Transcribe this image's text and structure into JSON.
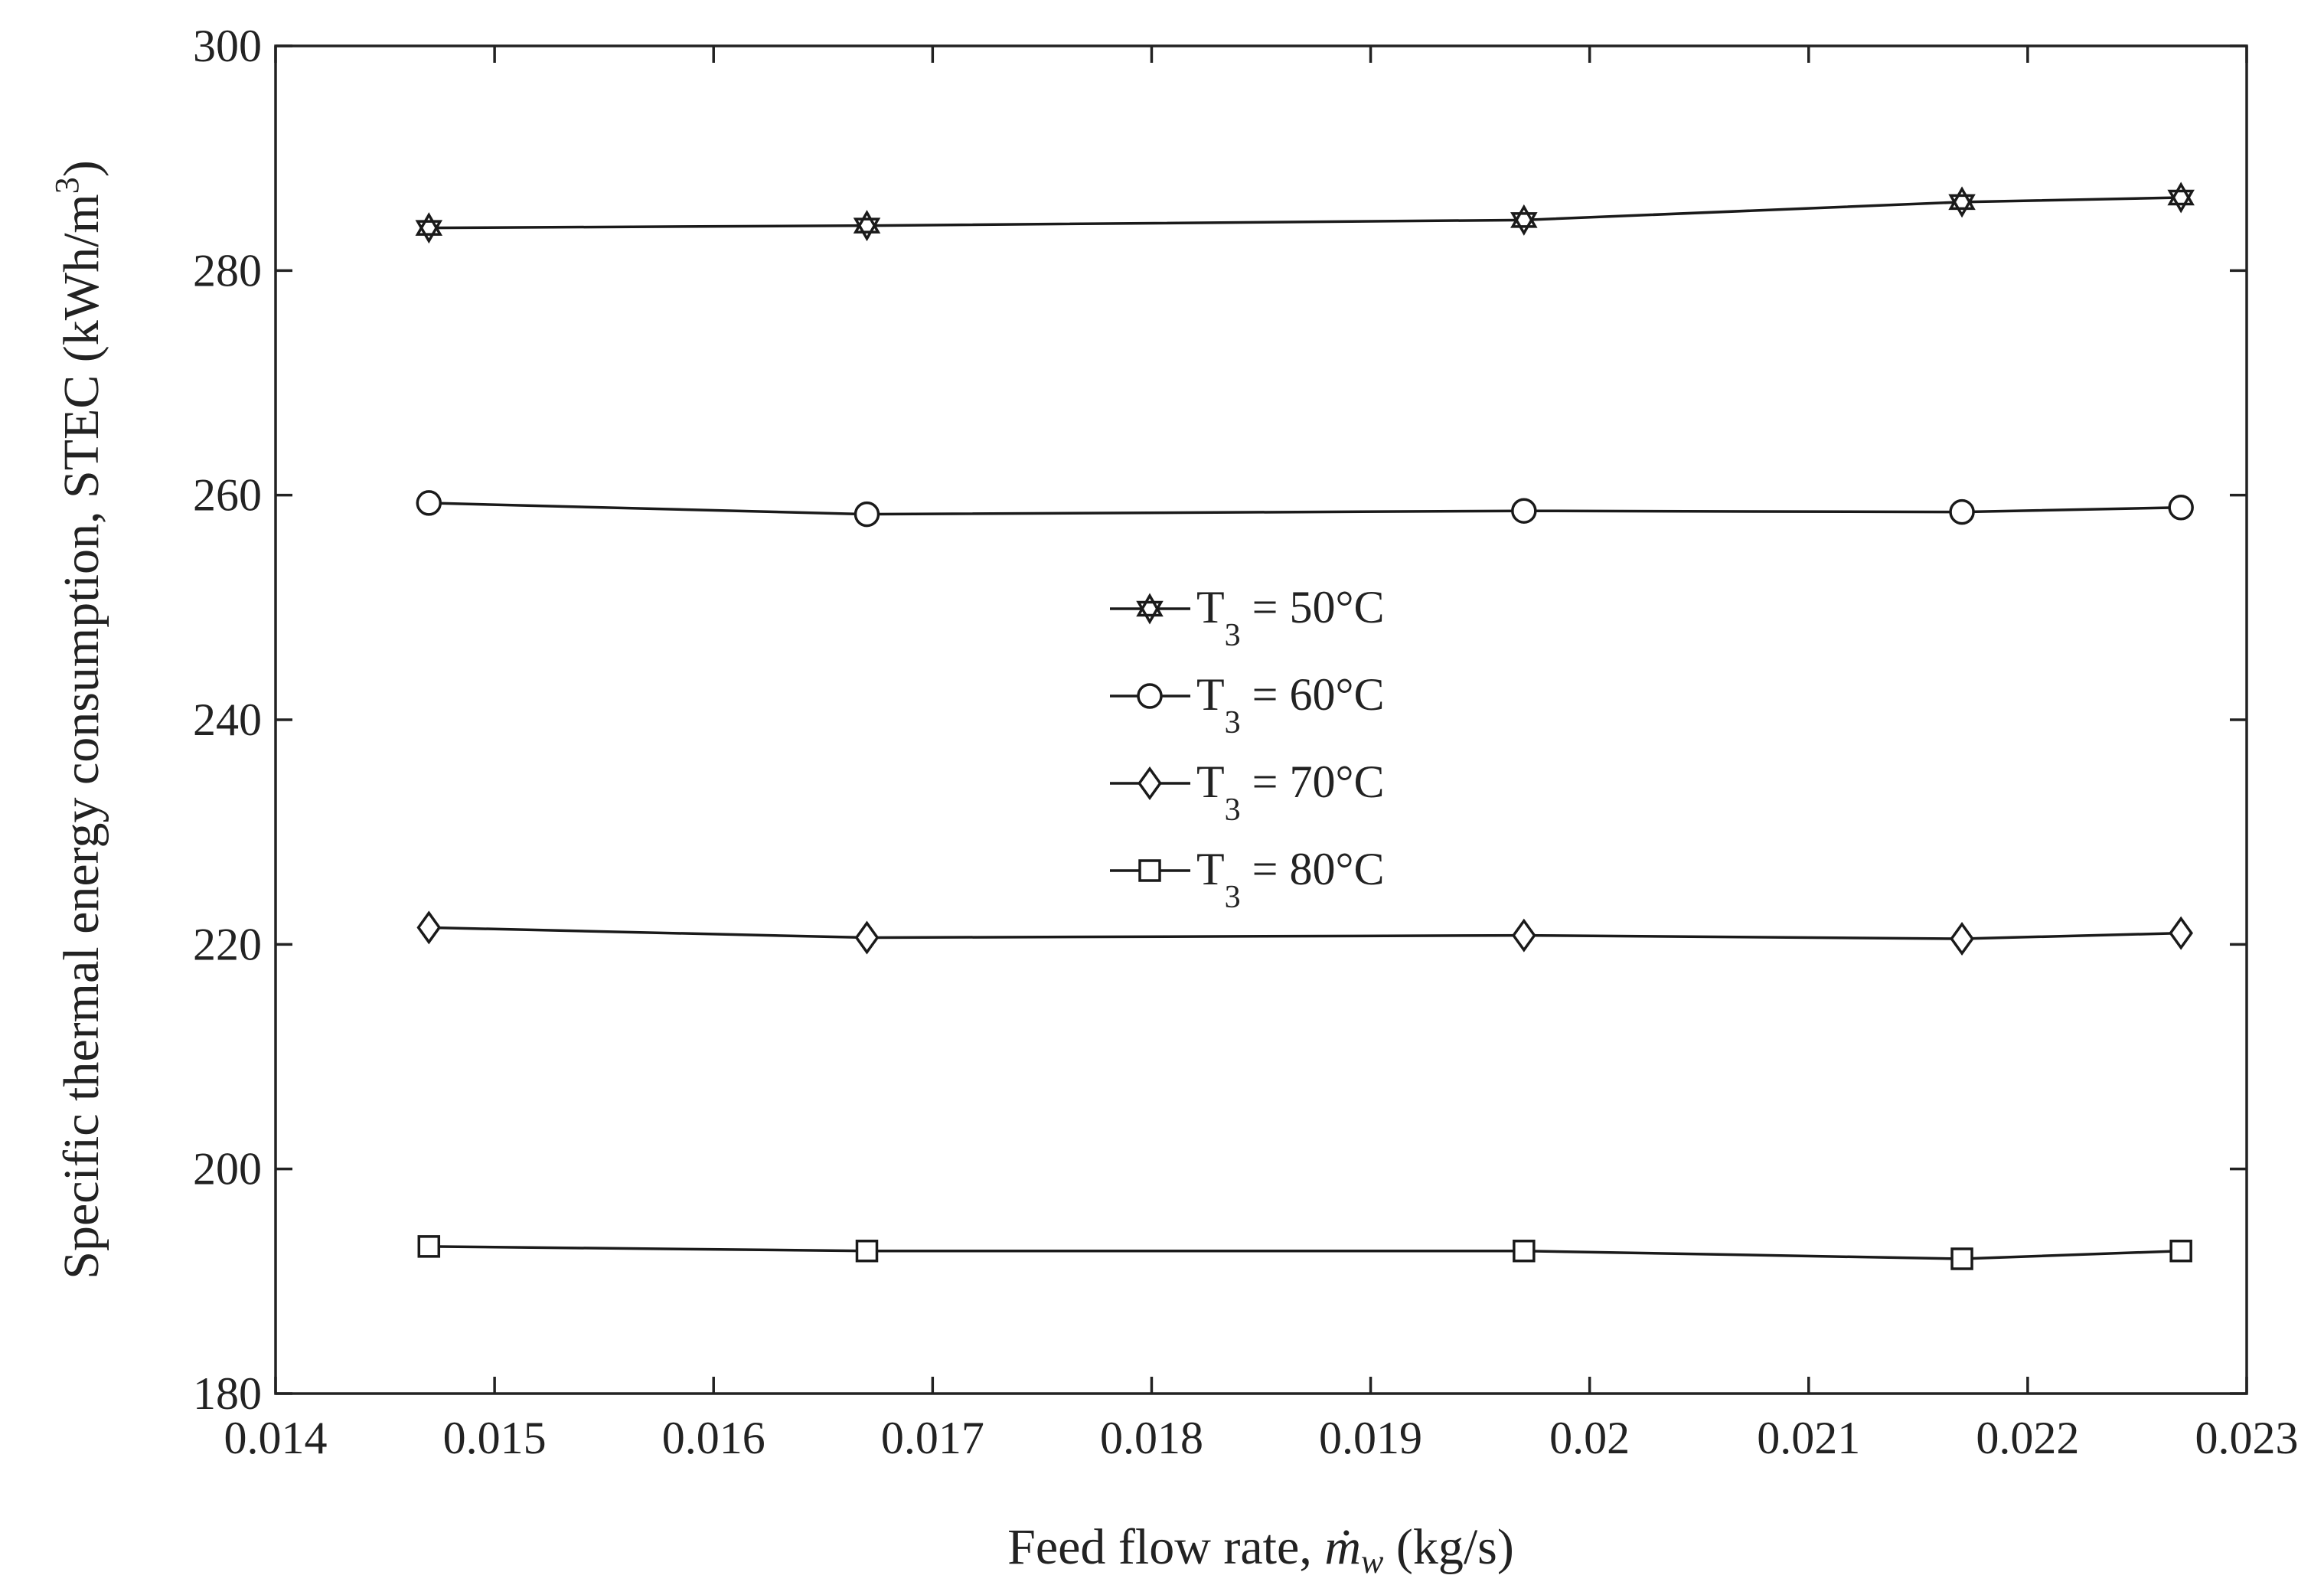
{
  "chart_data": {
    "type": "line",
    "title": "",
    "xlabel": "Feed flow rate,  ṁw (kg/s)",
    "xlabel_parts": {
      "prefix": "Feed flow rate,  ",
      "symbol": "ṁ",
      "subscript": "w",
      "suffix": " (kg/s)"
    },
    "ylabel": "Specific thermal energy consumption, STEC (kWh/m3)",
    "ylabel_parts": {
      "main": "Specific thermal energy consumption, STEC (kWh/m",
      "superscript": "3",
      "suffix": ")"
    },
    "xlim": [
      0.014,
      0.023
    ],
    "ylim": [
      180,
      300
    ],
    "xticks": [
      0.014,
      0.015,
      0.016,
      0.017,
      0.018,
      0.019,
      0.02,
      0.021,
      0.022,
      0.023
    ],
    "xtick_labels": [
      "0.014",
      "0.015",
      "0.016",
      "0.017",
      "0.018",
      "0.019",
      "0.02",
      "0.021",
      "0.022",
      "0.023"
    ],
    "yticks": [
      180,
      200,
      220,
      240,
      260,
      280,
      300
    ],
    "ytick_labels": [
      "180",
      "200",
      "220",
      "240",
      "260",
      "280",
      "300"
    ],
    "grid": false,
    "legend_position": "center",
    "x": [
      0.0147,
      0.0167,
      0.0197,
      0.0217,
      0.0227
    ],
    "series": [
      {
        "name": "T3 = 50°C",
        "label_main": "T",
        "label_sub": "3",
        "label_rest": " = 50°C",
        "marker": "hexagram",
        "values": [
          283.8,
          284.0,
          284.5,
          286.1,
          286.5
        ]
      },
      {
        "name": "T3 = 60°C",
        "label_main": "T",
        "label_sub": "3",
        "label_rest": " = 60°C",
        "marker": "circle",
        "values": [
          259.3,
          258.3,
          258.6,
          258.5,
          258.9
        ]
      },
      {
        "name": "T3 = 70°C",
        "label_main": "T",
        "label_sub": "3",
        "label_rest": " = 70°C",
        "marker": "diamond",
        "values": [
          221.5,
          220.6,
          220.8,
          220.5,
          221.0
        ]
      },
      {
        "name": "T3 = 80°C",
        "label_main": "T",
        "label_sub": "3",
        "label_rest": " = 80°C",
        "marker": "square",
        "values": [
          193.1,
          192.7,
          192.7,
          192.0,
          192.7
        ]
      }
    ]
  }
}
